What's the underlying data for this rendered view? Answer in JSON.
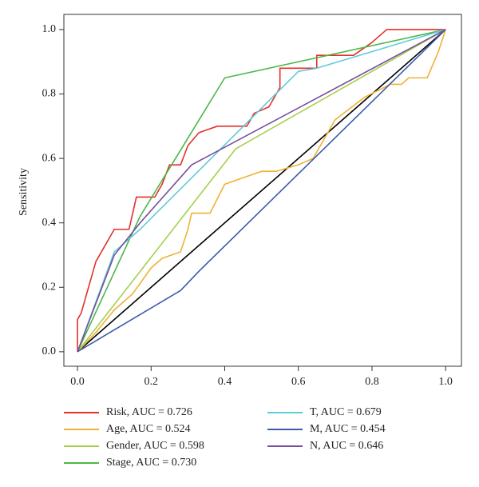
{
  "chart_data": {
    "type": "line",
    "y_label": "Sensitivity",
    "xlim": [
      -0.037,
      1.043
    ],
    "ylim": [
      -0.045,
      1.047
    ],
    "xticks": [
      {
        "value": 0,
        "label": "0.0"
      },
      0.2,
      0.4,
      0.6,
      0.8,
      {
        "value": 1,
        "label": "1.0"
      }
    ],
    "yticks": [
      {
        "value": 0,
        "label": "0.0"
      },
      0.2,
      0.4,
      0.6,
      0.8,
      {
        "value": 1,
        "label": "1.0"
      }
    ],
    "legend_position": "bottom",
    "diagonal": {
      "color": "#000000",
      "x": [
        0,
        1
      ],
      "values": [
        0,
        1
      ]
    },
    "series": [
      {
        "name": "Risk, AUC = 0.726",
        "color": "#e3302b",
        "x": [
          0,
          0,
          0.01,
          0.02,
          0.03,
          0.04,
          0.05,
          0.07,
          0.08,
          0.1,
          0.14,
          0.16,
          0.21,
          0.23,
          0.25,
          0.28,
          0.3,
          0.33,
          0.38,
          0.46,
          0.48,
          0.52,
          0.55,
          0.55,
          0.65,
          0.65,
          0.75,
          0.8,
          0.84,
          1
        ],
        "values": [
          0,
          0.1,
          0.12,
          0.16,
          0.2,
          0.24,
          0.28,
          0.32,
          0.34,
          0.38,
          0.38,
          0.48,
          0.48,
          0.52,
          0.58,
          0.58,
          0.64,
          0.68,
          0.7,
          0.7,
          0.74,
          0.76,
          0.82,
          0.88,
          0.88,
          0.92,
          0.92,
          0.96,
          1,
          1
        ]
      },
      {
        "name": "Age, AUC = 0.524",
        "color": "#efb234",
        "x": [
          0,
          0.05,
          0.1,
          0.15,
          0.2,
          0.23,
          0.28,
          0.3,
          0.31,
          0.36,
          0.4,
          0.45,
          0.5,
          0.54,
          0.6,
          0.64,
          0.7,
          0.78,
          0.85,
          0.88,
          0.9,
          0.95,
          0.98,
          1
        ],
        "values": [
          0,
          0.06,
          0.13,
          0.18,
          0.26,
          0.29,
          0.31,
          0.38,
          0.43,
          0.43,
          0.52,
          0.54,
          0.56,
          0.56,
          0.58,
          0.6,
          0.72,
          0.79,
          0.83,
          0.83,
          0.85,
          0.85,
          0.93,
          1
        ]
      },
      {
        "name": "Gender, AUC = 0.598",
        "color": "#a5cf4f",
        "x": [
          0,
          0.43,
          1
        ],
        "values": [
          0,
          0.63,
          1
        ]
      },
      {
        "name": "Stage, AUC = 0.730",
        "color": "#4cb748",
        "x": [
          0,
          0.17,
          0.4,
          1
        ],
        "values": [
          0,
          0.42,
          0.85,
          1
        ]
      },
      {
        "name": "T, AUC = 0.679",
        "color": "#5ecbdc",
        "x": [
          0,
          0.1,
          0.17,
          0.6,
          0.65,
          1
        ],
        "values": [
          0,
          0.31,
          0.38,
          0.87,
          0.88,
          1
        ]
      },
      {
        "name": "M, AUC = 0.454",
        "color": "#3a5cad",
        "x": [
          0,
          0.28,
          0.33,
          1
        ],
        "values": [
          0,
          0.19,
          0.25,
          1
        ]
      },
      {
        "name": "N, AUC = 0.646",
        "color": "#7a4e9e",
        "x": [
          0,
          0.1,
          0.17,
          0.31,
          1
        ],
        "values": [
          0,
          0.3,
          0.4,
          0.58,
          1
        ]
      }
    ]
  }
}
